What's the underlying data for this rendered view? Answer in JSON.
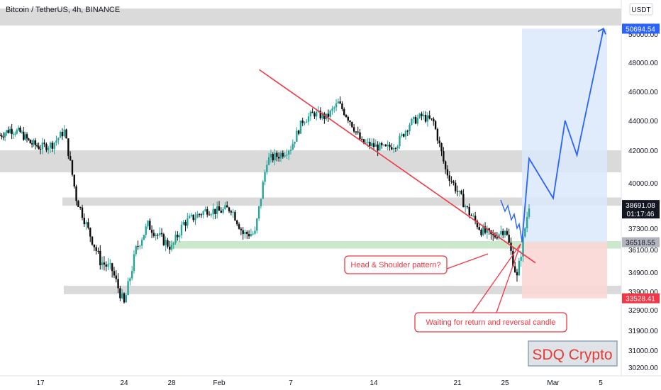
{
  "header": {
    "symbol_title": "Bitcoin / TetherUS, 4h, BINANCE",
    "currency_badge": "USDT"
  },
  "watermark": {
    "text": "SDQ Crypto"
  },
  "annotations": {
    "pattern_label": "Head & Shoulder pattern?",
    "waiting_label": "Waiting for return and reversal candle"
  },
  "price_badges": {
    "target": "50694.54",
    "current_price": "38691.08",
    "countdown": "01:17:46",
    "entry": "36518.55",
    "stop": "33528.41"
  },
  "colors": {
    "up": "#26a69a",
    "down": "#0b0b0b",
    "zone_gray": "#d3d3d3",
    "zone_green": "#c8e6c9",
    "target_box": "#dbe7fb",
    "stop_box": "#fbd6d6",
    "trendline": "#f23645",
    "projection": "#2962ff",
    "badge_blue": "#2962ff",
    "badge_red": "#f23645",
    "badge_dark": "#131722",
    "badge_gray": "#b2b5be"
  },
  "chart_data": {
    "type": "candlestick",
    "timeframe": "4h",
    "exchange": "BINANCE",
    "x_ticks": [
      "17",
      "24",
      "28",
      "Feb",
      "7",
      "14",
      "21",
      "25",
      "Mar",
      "5"
    ],
    "y_ticks": [
      50000,
      48000,
      46000,
      44000,
      42000,
      40000,
      37300,
      36100,
      34900,
      33900,
      32900,
      31900,
      31000,
      30200
    ],
    "y_range": [
      30000,
      52500
    ],
    "zones": [
      {
        "type": "resistance",
        "low": 51100,
        "high": 52000
      },
      {
        "type": "support_resistance",
        "low": 40650,
        "high": 42000
      },
      {
        "type": "support_resistance",
        "low": 38650,
        "high": 39150
      },
      {
        "type": "neckline",
        "low": 36160,
        "high": 36580
      },
      {
        "type": "support",
        "low": 33750,
        "high": 34200
      }
    ],
    "trade_setup": {
      "entry": 36518.55,
      "target": 50694.54,
      "stop": 33528.41,
      "current_price": 38691.08
    },
    "trendline": {
      "start": [
        "Feb 4",
        47500
      ],
      "end": [
        "Feb 28",
        35400
      ]
    },
    "projection_path": [
      [
        "Feb 26",
        36518
      ],
      [
        "Feb 27",
        41500
      ],
      [
        "Mar 1",
        39100
      ],
      [
        "Mar 2",
        44000
      ],
      [
        "Mar 3",
        41700
      ],
      [
        "Mar 5",
        50694
      ]
    ],
    "price_path": [
      [
        "Jan 13",
        43000
      ],
      [
        "Jan 14",
        43400
      ],
      [
        "Jan 15",
        43200
      ],
      [
        "Jan 16",
        42500
      ],
      [
        "Jan 17",
        42200
      ],
      [
        "Jan 18",
        42400
      ],
      [
        "Jan 19",
        43300
      ],
      [
        "Jan 20",
        39100
      ],
      [
        "Jan 21",
        37200
      ],
      [
        "Jan 22",
        35500
      ],
      [
        "Jan 23",
        35000
      ],
      [
        "Jan 24",
        33200
      ],
      [
        "Jan 25",
        36100
      ],
      [
        "Jan 26",
        37500
      ],
      [
        "Jan 27",
        36800
      ],
      [
        "Jan 28",
        36200
      ],
      [
        "Jan 29",
        37600
      ],
      [
        "Jan 30",
        38000
      ],
      [
        "Jan 31",
        38400
      ],
      [
        "Feb 1",
        38300
      ],
      [
        "Feb 2",
        38500
      ],
      [
        "Feb 3",
        37000
      ],
      [
        "Feb 4",
        37000
      ],
      [
        "Feb 5",
        41400
      ],
      [
        "Feb 6",
        41700
      ],
      [
        "Feb 7",
        42200
      ],
      [
        "Feb 8",
        44000
      ],
      [
        "Feb 9",
        44500
      ],
      [
        "Feb 10",
        44200
      ],
      [
        "Feb 11",
        45200
      ],
      [
        "Feb 12",
        44000
      ],
      [
        "Feb 13",
        42500
      ],
      [
        "Feb 14",
        42300
      ],
      [
        "Feb 15",
        42100
      ],
      [
        "Feb 16",
        42500
      ],
      [
        "Feb 17",
        43800
      ],
      [
        "Feb 18",
        44300
      ],
      [
        "Feb 19",
        43900
      ],
      [
        "Feb 20",
        40800
      ],
      [
        "Feb 21",
        39500
      ],
      [
        "Feb 22",
        38200
      ],
      [
        "Feb 23",
        37200
      ],
      [
        "Feb 24",
        36800
      ],
      [
        "Feb 25",
        37300
      ],
      [
        "Feb 26",
        34600
      ],
      [
        "Feb 27",
        38691
      ]
    ]
  }
}
